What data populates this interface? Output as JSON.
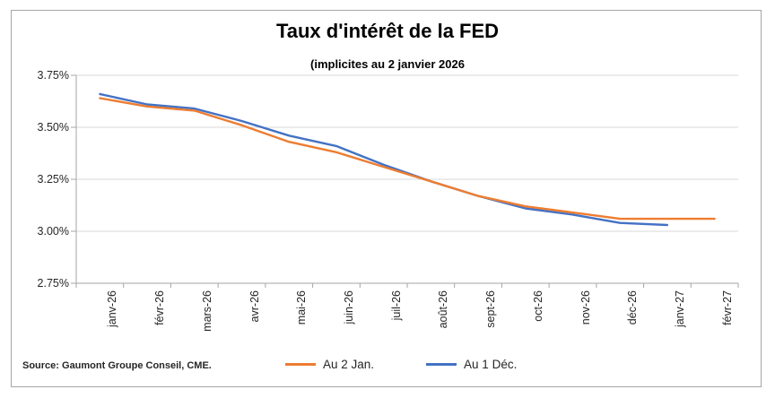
{
  "figure": {
    "title": "Taux d'intérêt de la FED",
    "subtitle": "(implicites au 2 janvier 2026",
    "source": "Source: Gaumont Groupe Conseil, CME."
  },
  "legend": {
    "items": [
      {
        "label": "Au 2 Jan.",
        "color": "#ED7D31"
      },
      {
        "label": "Au 1 Déc.",
        "color": "#4472C4"
      }
    ]
  },
  "colors": {
    "series_orange": "#ED7D31",
    "series_blue": "#4472C4",
    "gridline": "#D9D9D9",
    "axis": "#A6A6A6",
    "frame_border": "#A6A6A6",
    "text": "#262626"
  },
  "chart_data": {
    "type": "line",
    "title": "Taux d'intérêt de la FED",
    "subtitle": "(implicites au 2 janvier 2026",
    "categories": [
      "janv-26",
      "févr-26",
      "mars-26",
      "avr-26",
      "mai-26",
      "juin-26",
      "juil-26",
      "août-26",
      "sept-26",
      "oct-26",
      "nov-26",
      "déc-26",
      "janv-27",
      "févr-27"
    ],
    "series": [
      {
        "name": "Au 2 Jan.",
        "color": "#ED7D31",
        "values": [
          3.64,
          3.6,
          3.58,
          3.51,
          3.43,
          3.38,
          3.31,
          3.24,
          3.17,
          3.12,
          3.09,
          3.06,
          3.06,
          3.06
        ]
      },
      {
        "name": "Au 1 Déc.",
        "color": "#4472C4",
        "values": [
          3.66,
          3.61,
          3.59,
          3.53,
          3.46,
          3.41,
          3.32,
          3.24,
          3.17,
          3.11,
          3.08,
          3.04,
          3.03,
          null
        ]
      }
    ],
    "xlabel": "",
    "ylabel": "",
    "ylim": [
      2.75,
      3.75
    ],
    "ytick_step": 0.25,
    "ytick_labels": [
      "3.75%",
      "3.50%",
      "3.25%",
      "3.00%",
      "2.75%"
    ],
    "grid": "horizontal",
    "legend_position": "bottom"
  }
}
